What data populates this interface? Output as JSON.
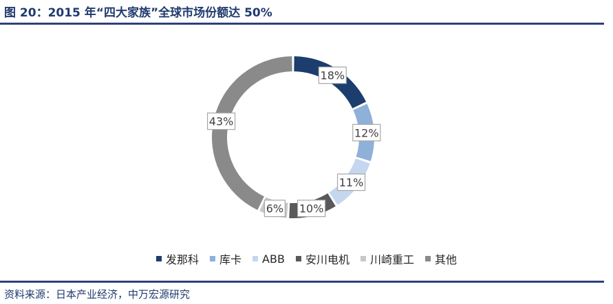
{
  "header": {
    "title": "图 20：2015 年“四大家族”全球市场份额达 50%"
  },
  "footer": {
    "source": "资料来源：日本产业经济，中万宏源研究"
  },
  "chart_data": {
    "type": "pie",
    "donut": true,
    "title": "图 20：2015 年“四大家族”全球市场份额达 50%",
    "legend_position": "bottom",
    "categories": [
      "发那科",
      "库卡",
      "ABB",
      "安川电机",
      "川崎重工",
      "其他"
    ],
    "values": [
      18,
      12,
      11,
      10,
      6,
      43
    ],
    "labels": [
      "18%",
      "12%",
      "11%",
      "10%",
      "6%",
      "43%"
    ],
    "colors": [
      "#1c3d6e",
      "#8fb0d9",
      "#c5d7ef",
      "#595959",
      "#c8c8c8",
      "#8a8a8a"
    ]
  }
}
